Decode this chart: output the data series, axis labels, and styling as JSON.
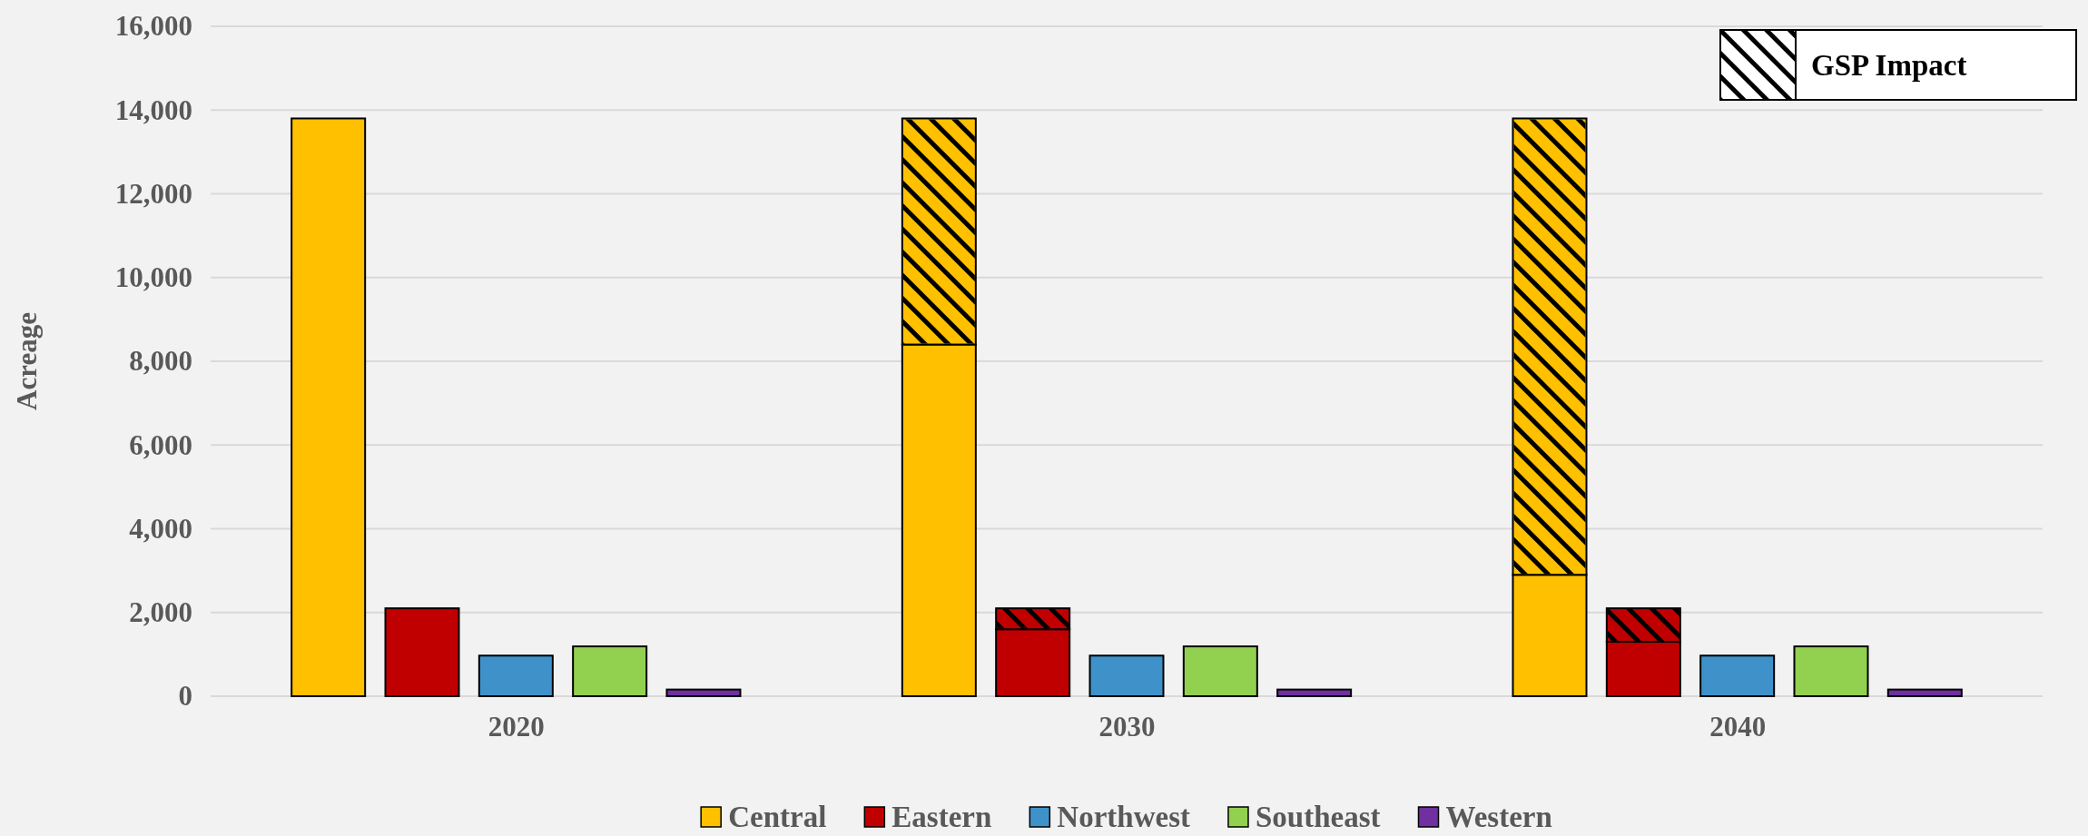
{
  "chart_data": {
    "type": "bar",
    "ylabel": "Acreage",
    "categories": [
      null,
      null,
      "2020",
      null,
      null,
      null,
      null,
      "2030",
      null,
      null,
      null,
      null,
      "2040",
      null,
      null
    ],
    "ylim": [
      0,
      16000
    ],
    "yticks": [
      {
        "value": 0,
        "label": "0"
      },
      {
        "value": 2000,
        "label": "2,000"
      },
      {
        "value": 4000,
        "label": "4,000"
      },
      {
        "value": 6000,
        "label": "6,000"
      },
      {
        "value": 8000,
        "label": "8,000"
      },
      {
        "value": 10000,
        "label": "10,000"
      },
      {
        "value": 12000,
        "label": "12,000"
      },
      {
        "value": 14000,
        "label": "14,000"
      },
      {
        "value": 16000,
        "label": "16,000"
      }
    ],
    "grid": "y",
    "legend": "bottom",
    "stacked": true,
    "annotations": [
      "GSP Impact"
    ],
    "series": [
      {
        "name": "Central",
        "color": "#ffc000",
        "values": [
          13800,
          null,
          null,
          null,
          null,
          8400,
          null,
          null,
          null,
          null,
          2900,
          null,
          null,
          null,
          null
        ]
      },
      {
        "name": "Eastern",
        "color": "#c00000",
        "values": [
          null,
          2100,
          null,
          null,
          null,
          null,
          1600,
          null,
          null,
          null,
          null,
          1300,
          null,
          null,
          null
        ]
      },
      {
        "name": "Northwest",
        "color": "#3f92c9",
        "values": [
          null,
          null,
          970,
          null,
          null,
          null,
          null,
          970,
          null,
          null,
          null,
          null,
          970,
          null,
          null
        ]
      },
      {
        "name": "Southeast",
        "color": "#92d050",
        "values": [
          null,
          null,
          null,
          1190,
          null,
          null,
          null,
          null,
          1190,
          null,
          null,
          null,
          null,
          1190,
          null
        ]
      },
      {
        "name": "Western",
        "color": "#7030a0",
        "values": [
          null,
          null,
          null,
          null,
          160,
          null,
          null,
          null,
          null,
          160,
          null,
          null,
          null,
          null,
          160
        ]
      },
      {
        "color": "#ffc000",
        "values": [
          null,
          null,
          null,
          null,
          null,
          5400,
          null,
          null,
          null,
          null,
          10900,
          null,
          null,
          null,
          null
        ]
      },
      {
        "color": "#c00000",
        "values": [
          null,
          null,
          null,
          null,
          null,
          null,
          500,
          null,
          null,
          null,
          null,
          800,
          null,
          null,
          null
        ]
      }
    ]
  }
}
